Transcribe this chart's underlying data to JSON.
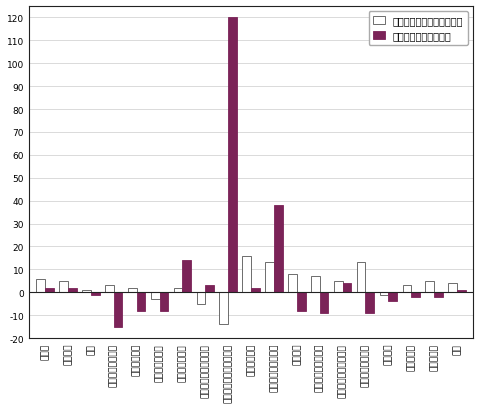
{
  "categories": [
    "鉱工業",
    "製造工業",
    "鉱業",
    "赤鉄・金属鉱工業",
    "金属製品工業",
    "はん用機械工業",
    "生産用機械工業",
    "半導体・デバイス工業",
    "電子・情報通信機械工業",
    "輸送機械工業",
    "窯業・土石製品工業",
    "化学工業",
    "石油・石炭製品工業",
    "プラスチック製品工業",
    "紙・紙加工品工業",
    "繊維工業",
    "食料品工業",
    "その他工業",
    "鉱業"
  ],
  "mom": [
    6,
    5,
    1,
    3,
    2,
    -3,
    2,
    -5,
    -14,
    16,
    13,
    8,
    7,
    5,
    13,
    -1,
    3,
    5,
    4
  ],
  "yoy": [
    2,
    2,
    -1,
    -15,
    -8,
    -8,
    14,
    3,
    120,
    2,
    38,
    -8,
    -9,
    4,
    -9,
    -4,
    -2,
    -2,
    1
  ],
  "bar_width": 0.38,
  "ylim": [
    -20,
    125
  ],
  "yticks": [
    -20,
    -10,
    0,
    10,
    20,
    30,
    40,
    50,
    60,
    70,
    80,
    90,
    100,
    110,
    120
  ],
  "legend_mom": "前月比（季節調整済指数）",
  "legend_yoy": "前年同月比（原指数）",
  "mom_color": "#ffffff",
  "mom_edge": "#555555",
  "yoy_color": "#7b2358",
  "yoy_edge": "#7b2358",
  "bg_color": "#ffffff",
  "grid_color": "#cccccc",
  "zero_line_color": "#222222",
  "tick_fontsize": 6.5,
  "legend_fontsize": 7.0,
  "border_color": "#222222"
}
